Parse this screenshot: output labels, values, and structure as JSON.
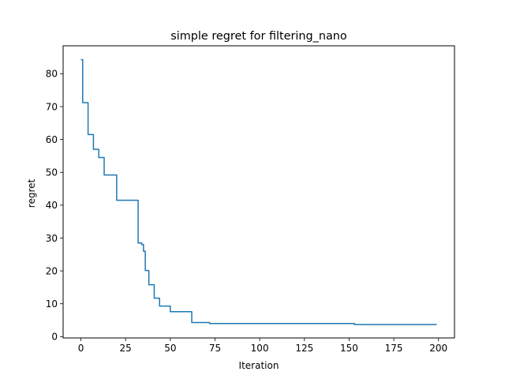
{
  "chart_data": {
    "type": "line",
    "title": "simple regret for filtering_nano",
    "xlabel": "Iteration",
    "ylabel": "regret",
    "xlim": [
      -9.95,
      208.95
    ],
    "ylim": [
      -0.4,
      88.5
    ],
    "xticks": [
      0,
      25,
      50,
      75,
      100,
      125,
      150,
      175,
      200
    ],
    "yticks": [
      0,
      10,
      20,
      30,
      40,
      50,
      60,
      70,
      80
    ],
    "grid": false,
    "line_color": "#1f77b4",
    "series": [
      {
        "steps": [
          [
            0,
            84.3
          ],
          [
            1,
            71.2
          ],
          [
            4,
            61.5
          ],
          [
            7,
            57.0
          ],
          [
            10,
            54.5
          ],
          [
            13,
            49.2
          ],
          [
            20,
            41.5
          ],
          [
            32,
            28.5
          ],
          [
            34,
            28.0
          ],
          [
            35,
            26.0
          ],
          [
            36,
            20.1
          ],
          [
            38,
            15.8
          ],
          [
            41,
            11.7
          ],
          [
            44,
            9.3
          ],
          [
            50,
            7.6
          ],
          [
            62,
            4.3
          ],
          [
            72,
            4.0
          ],
          [
            153,
            3.7
          ],
          [
            199,
            3.7
          ]
        ]
      }
    ]
  }
}
